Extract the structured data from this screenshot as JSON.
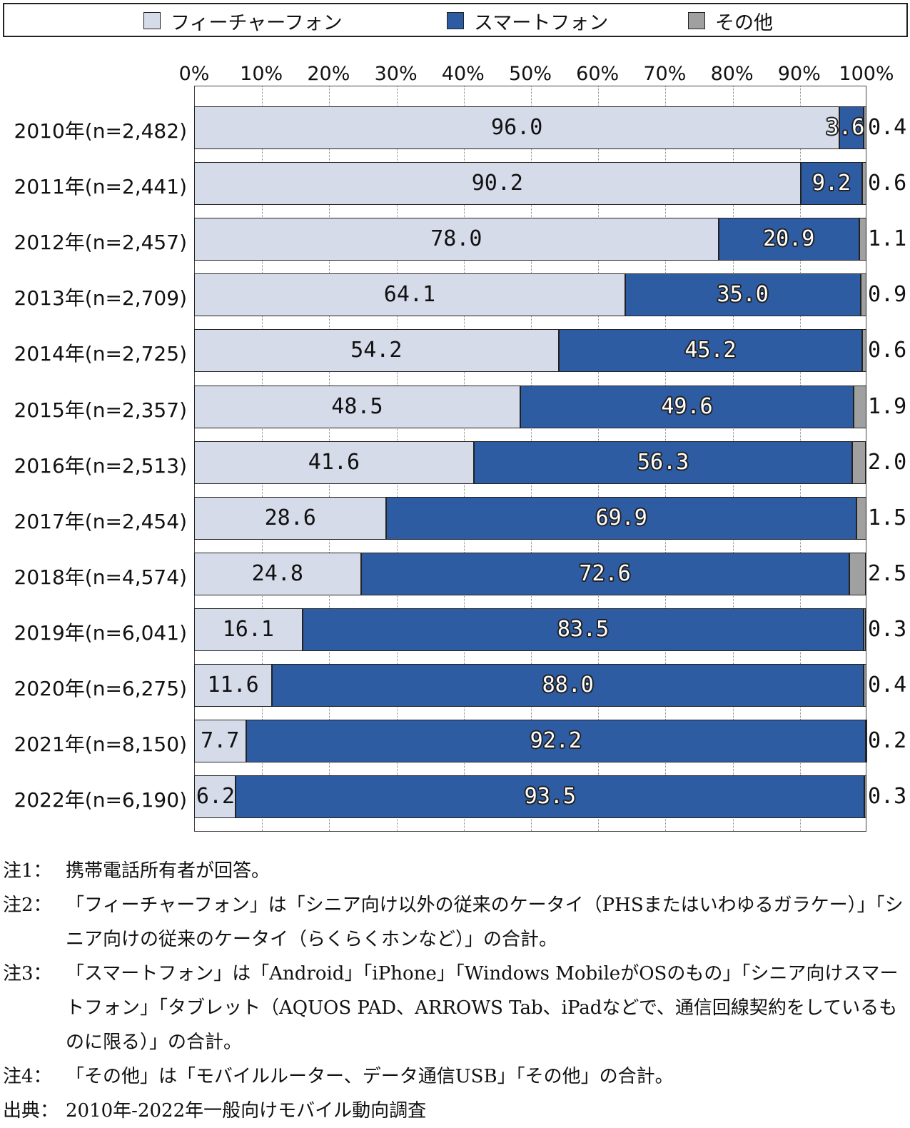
{
  "legend": {
    "items": [
      {
        "label": "フィーチャーフォン",
        "color": "#d5dbe9"
      },
      {
        "label": "スマートフォン",
        "color": "#2e5ca3"
      },
      {
        "label": "その他",
        "color": "#a0a0a0"
      }
    ]
  },
  "chart_data": {
    "type": "bar",
    "orientation": "horizontal",
    "stacked": true,
    "xlim": [
      0,
      100
    ],
    "x_ticks": [
      "0%",
      "10%",
      "20%",
      "30%",
      "40%",
      "50%",
      "60%",
      "70%",
      "80%",
      "90%",
      "100%"
    ],
    "grid": "vertical dotted",
    "legend_position": "top",
    "categories": [
      "2010年(n=2,482)",
      "2011年(n=2,441)",
      "2012年(n=2,457)",
      "2013年(n=2,709)",
      "2014年(n=2,725)",
      "2015年(n=2,357)",
      "2016年(n=2,513)",
      "2017年(n=2,454)",
      "2018年(n=4,574)",
      "2019年(n=6,041)",
      "2020年(n=6,275)",
      "2021年(n=8,150)",
      "2022年(n=6,190)"
    ],
    "series": [
      {
        "name": "フィーチャーフォン",
        "color": "#d5dbe9",
        "values": [
          96.0,
          90.2,
          78.0,
          64.1,
          54.2,
          48.5,
          41.6,
          28.6,
          24.8,
          16.1,
          11.6,
          7.7,
          6.2
        ],
        "labels": [
          "96.0",
          "90.2",
          "78.0",
          "64.1",
          "54.2",
          "48.5",
          "41.6",
          "28.6",
          "24.8",
          "16.1",
          "11.6",
          "7.7",
          "6.2"
        ]
      },
      {
        "name": "スマートフォン",
        "color": "#2e5ca3",
        "values": [
          3.6,
          9.2,
          20.9,
          35.0,
          45.2,
          49.6,
          56.3,
          69.9,
          72.6,
          83.5,
          88.0,
          92.2,
          93.5
        ],
        "labels": [
          "3.6",
          "9.2",
          "20.9",
          "35.0",
          "45.2",
          "49.6",
          "56.3",
          "69.9",
          "72.6",
          "83.5",
          "88.0",
          "92.2",
          "93.5"
        ]
      },
      {
        "name": "その他",
        "color": "#a0a0a0",
        "values": [
          0.4,
          0.6,
          1.1,
          0.9,
          0.6,
          1.9,
          2.0,
          1.5,
          2.5,
          0.3,
          0.4,
          0.2,
          0.3
        ],
        "labels": [
          "0.4",
          "0.6",
          "1.1",
          "0.9",
          "0.6",
          "1.9",
          "2.0",
          "1.5",
          "2.5",
          "0.3",
          "0.4",
          "0.2",
          "0.3"
        ]
      }
    ]
  },
  "notes": [
    {
      "label": "注1：",
      "text": "携帯電話所有者が回答。"
    },
    {
      "label": "注2：",
      "text": "「フィーチャーフォン」は「シニア向け以外の従来のケータイ（PHSまたはいわゆるガラケー）」「シニア向けの従来のケータイ（らくらくホンなど）」の合計。"
    },
    {
      "label": "注3：",
      "text": "「スマートフォン」は「Android」「iPhone」「Windows MobileがOSのもの」「シニア向けスマートフォン」「タブレット（AQUOS PAD、ARROWS Tab、iPadなどで、通信回線契約をしているものに限る）」の合計。"
    },
    {
      "label": "注4：",
      "text": "「その他」は「モバイルルーター、データ通信USB」「その他」の合計。"
    },
    {
      "label": "出典：",
      "text": "2010年-2022年一般向けモバイル動向調査"
    }
  ]
}
